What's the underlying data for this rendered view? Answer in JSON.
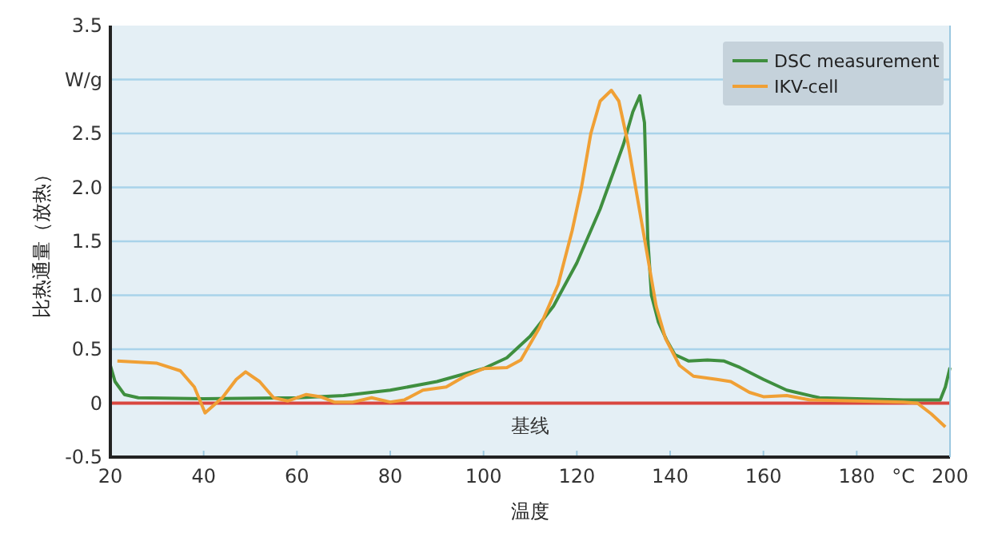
{
  "chart_data": {
    "type": "line",
    "xlabel": "温度",
    "ylabel": "比热通量（放热）",
    "xlim": [
      20,
      200
    ],
    "xticks": [
      20,
      40,
      60,
      80,
      100,
      120,
      140,
      160,
      180,
      {
        "value": 190,
        "label": "°C"
      },
      200
    ],
    "ylim": [
      -0.5,
      3.5
    ],
    "yticks": [
      {
        "value": -0.5,
        "label": "-0.5"
      },
      0,
      {
        "value": 0.5,
        "label": "0.5"
      },
      {
        "value": 1,
        "label": "1.0"
      },
      {
        "value": 1.5,
        "label": "1.5"
      },
      {
        "value": 2,
        "label": "2.0"
      },
      {
        "value": 2.5,
        "label": "2.5"
      },
      {
        "value": 3,
        "label": "W/g"
      },
      {
        "value": 3.5,
        "label": "3.5"
      }
    ],
    "grid": "y",
    "legend": "top right",
    "line_style": "solid",
    "ref_lines": [
      {
        "axis": "y",
        "value": 0,
        "label": "基线",
        "color": "#d9473f"
      }
    ],
    "series": [
      {
        "name": "DSC measurement",
        "color": "#3f8f3f",
        "x": [
          20,
          21,
          23,
          26,
          40,
          60,
          70,
          80,
          90,
          100,
          105,
          110,
          115,
          120,
          125,
          130,
          132,
          133.5,
          134.5,
          135.2,
          136,
          137.5,
          139.2,
          141,
          144,
          148,
          151.6,
          155,
          160,
          165,
          172,
          180,
          190,
          197.9,
          199,
          200
        ],
        "values": [
          0.35,
          0.2,
          0.08,
          0.05,
          0.04,
          0.05,
          0.07,
          0.12,
          0.2,
          0.32,
          0.42,
          0.62,
          0.9,
          1.3,
          1.8,
          2.4,
          2.7,
          2.85,
          2.6,
          1.53,
          1.0,
          0.75,
          0.59,
          0.45,
          0.39,
          0.4,
          0.39,
          0.33,
          0.22,
          0.12,
          0.05,
          0.04,
          0.03,
          0.03,
          0.15,
          0.33
        ]
      },
      {
        "name": "IKV-cell",
        "color": "#f0a035",
        "x": [
          21.5,
          30,
          35,
          38,
          40.3,
          44,
          47,
          49,
          52,
          55,
          58,
          62,
          65,
          68,
          72,
          76,
          80,
          83,
          87,
          92,
          96,
          100,
          105,
          108,
          112,
          116,
          119,
          121,
          123,
          125,
          127.4,
          129,
          131,
          133,
          135,
          137,
          139,
          142,
          145,
          150,
          153,
          157,
          160,
          165,
          170,
          180,
          190,
          193,
          196,
          199
        ],
        "values": [
          0.39,
          0.37,
          0.3,
          0.15,
          -0.09,
          0.05,
          0.22,
          0.29,
          0.2,
          0.05,
          0.02,
          0.08,
          0.06,
          0.01,
          0.01,
          0.05,
          0.01,
          0.03,
          0.12,
          0.15,
          0.25,
          0.32,
          0.33,
          0.4,
          0.7,
          1.1,
          1.6,
          2.0,
          2.5,
          2.8,
          2.9,
          2.8,
          2.4,
          1.9,
          1.4,
          0.9,
          0.6,
          0.35,
          0.25,
          0.22,
          0.2,
          0.1,
          0.06,
          0.07,
          0.03,
          0.02,
          0.01,
          0.0,
          -0.1,
          -0.22
        ]
      }
    ]
  }
}
